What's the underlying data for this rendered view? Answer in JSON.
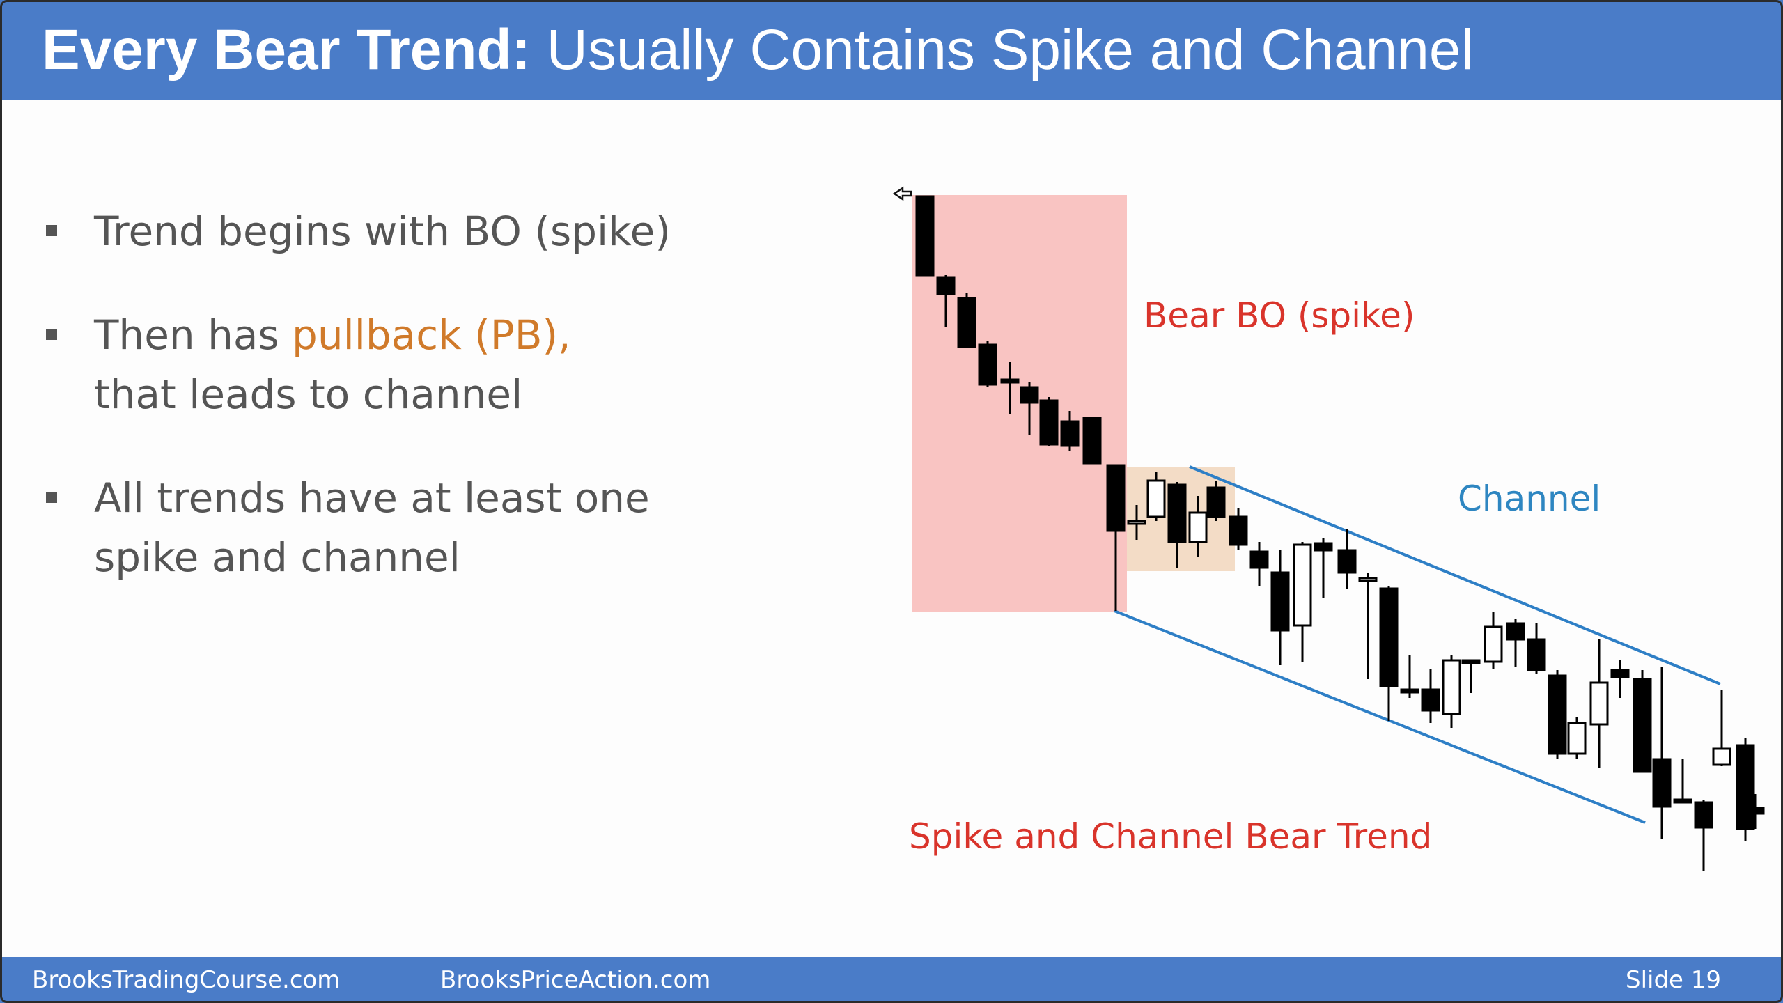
{
  "header": {
    "title_bold": "Every Bear Trend:",
    "title_rest": " Usually Contains Spike and Channel"
  },
  "bullets": [
    {
      "line1": "Trend begins with BO (spike)"
    },
    {
      "line1_pre": "Then has ",
      "line1_highlight": "pullback (PB),",
      "line2": "that leads to channel"
    },
    {
      "line1": "All trends have at least one",
      "line2": "spike and channel"
    }
  ],
  "chart": {
    "labels": {
      "bear_bo": "Bear BO (spike)",
      "channel": "Channel",
      "trend": "Spike and Channel Bear Trend"
    },
    "colors": {
      "spike_zone": "#f9c4c2",
      "pullback_zone": "#f3dcc6",
      "channel_line": "#2e7fc6",
      "red_label": "#d9342b",
      "blue_label": "#2e86c1",
      "highlight": "#d07a2a"
    }
  },
  "footer": {
    "left": "BrooksTradingCourse.com",
    "middle": "BrooksPriceAction.com",
    "slide": "Slide  19"
  }
}
